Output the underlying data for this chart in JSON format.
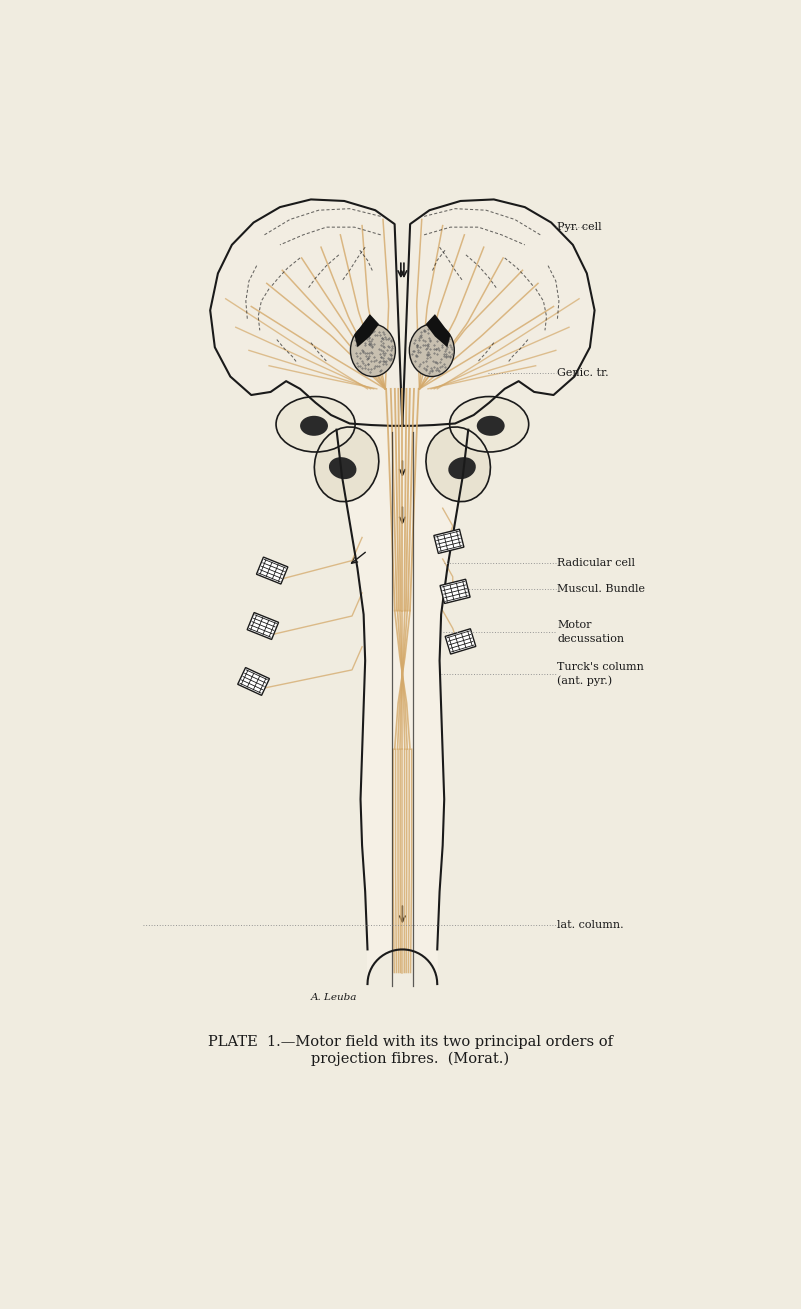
{
  "background_color": "#f0ece0",
  "line_color": "#1a1a1a",
  "fiber_color": "#d4a96a",
  "annotation_color": "#1a1a1a",
  "dotted_line_color": "#888888",
  "figure_width": 8.01,
  "figure_height": 13.09,
  "caption_line1": "PLATE  1.—Motor field with its two principal orders of",
  "caption_line2": "projection fibres.  (Morat.)",
  "labels": {
    "pyr_cell": "Pyr. cell",
    "genic_tr": "Genic. tr.",
    "motor_decussation_1": "Motor",
    "motor_decussation_2": "decussation",
    "turcks_column_1": "Turck's column",
    "turcks_column_2": "(ant. pyr.)",
    "radicular_cell": "Radicular cell",
    "muscul_bundle": "Muscul. Bundle",
    "lat_column": "lat. column.",
    "artist": "A. Leuba"
  }
}
